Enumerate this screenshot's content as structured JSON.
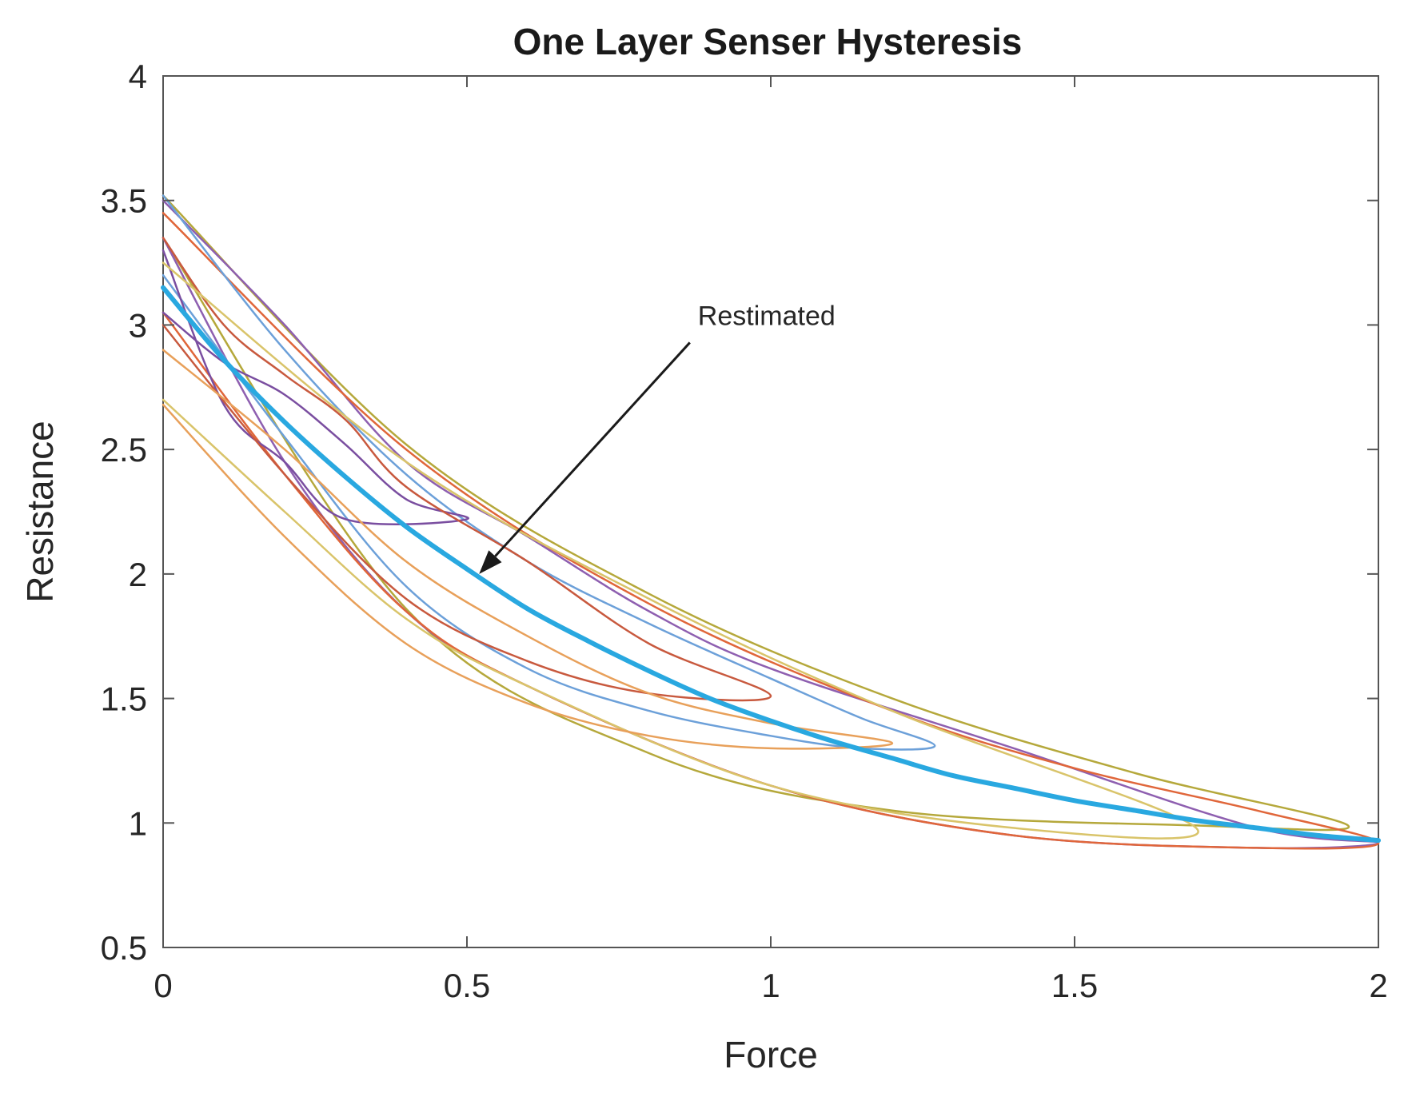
{
  "chart_data": {
    "type": "line",
    "title": "One Layer Senser Hysteresis",
    "xlabel": "Force",
    "ylabel": "Resistance",
    "xlim": [
      0,
      2
    ],
    "ylim": [
      0.5,
      4
    ],
    "xticks": [
      "0",
      "0.5",
      "1",
      "1.5",
      "2"
    ],
    "yticks": [
      "0.5",
      "1",
      "1.5",
      "2",
      "2.5",
      "3",
      "3.5",
      "4"
    ],
    "grid": false,
    "annotation": {
      "text": "Restimated",
      "point": [
        0.52,
        2.0
      ],
      "text_at": [
        0.88,
        3.0
      ]
    },
    "estimated_series": {
      "color": "#29a8e0",
      "x": [
        0,
        0.1,
        0.2,
        0.3,
        0.4,
        0.5,
        0.6,
        0.7,
        0.8,
        0.9,
        1.0,
        1.1,
        1.2,
        1.3,
        1.4,
        1.5,
        1.6,
        1.7,
        1.8,
        1.9,
        2.0
      ],
      "y": [
        3.15,
        2.86,
        2.61,
        2.39,
        2.19,
        2.02,
        1.86,
        1.73,
        1.61,
        1.5,
        1.41,
        1.33,
        1.26,
        1.19,
        1.14,
        1.09,
        1.05,
        1.01,
        0.98,
        0.95,
        0.93
      ]
    },
    "series": [
      {
        "color": "#b5a83b",
        "x": [
          0,
          0.4,
          0.8,
          1.2,
          1.6,
          1.95,
          1.7,
          1.2,
          0.8,
          0.4,
          0
        ],
        "y": [
          3.52,
          2.52,
          1.92,
          1.5,
          1.2,
          0.99,
          0.99,
          1.05,
          1.28,
          1.86,
          3.35
        ]
      },
      {
        "color": "#8e5fb0",
        "x": [
          0,
          0.2,
          0.4,
          0.6,
          0.8,
          1.0,
          1.4,
          1.8,
          2.0,
          1.8,
          1.4,
          1.0,
          0.6,
          0.4,
          0.2,
          0
        ],
        "y": [
          3.5,
          3.0,
          2.45,
          2.15,
          1.85,
          1.62,
          1.3,
          0.98,
          0.92,
          0.9,
          0.95,
          1.15,
          1.55,
          1.85,
          2.45,
          3.35
        ]
      },
      {
        "color": "#e0663a",
        "x": [
          0,
          0.4,
          0.8,
          1.2,
          1.5,
          1.8,
          2.0,
          1.8,
          1.4,
          1.0,
          0.6,
          0.4,
          0.2,
          0
        ],
        "y": [
          3.45,
          2.5,
          1.88,
          1.45,
          1.22,
          1.05,
          0.92,
          0.9,
          0.95,
          1.15,
          1.55,
          1.85,
          2.4,
          3.05
        ]
      },
      {
        "color": "#6ca0d9",
        "x": [
          0,
          0.2,
          0.4,
          0.6,
          0.8,
          1.0,
          1.15,
          1.27,
          1.15,
          1.0,
          0.8,
          0.6,
          0.4,
          0.2,
          0
        ],
        "y": [
          3.52,
          2.9,
          2.4,
          2.05,
          1.8,
          1.58,
          1.42,
          1.31,
          1.3,
          1.35,
          1.45,
          1.62,
          1.95,
          2.55,
          3.2
        ]
      },
      {
        "color": "#7a4ea0",
        "x": [
          0,
          0.1,
          0.2,
          0.3,
          0.4,
          0.5,
          0.3,
          0.2,
          0.1,
          0
        ],
        "y": [
          3.05,
          2.85,
          2.72,
          2.52,
          2.3,
          2.22,
          2.22,
          2.45,
          2.68,
          3.3
        ]
      },
      {
        "color": "#c8593e",
        "x": [
          0,
          0.1,
          0.2,
          0.3,
          0.4,
          0.6,
          0.8,
          1.0,
          0.8,
          0.6,
          0.4,
          0.2,
          0
        ],
        "y": [
          3.35,
          3.0,
          2.8,
          2.62,
          2.35,
          2.05,
          1.72,
          1.51,
          1.52,
          1.65,
          1.9,
          2.4,
          3.0
        ]
      },
      {
        "color": "#d9c46a",
        "x": [
          0,
          0.4,
          0.8,
          1.2,
          1.7,
          1.4,
          1.0,
          0.6,
          0.4,
          0.2,
          0
        ],
        "y": [
          3.25,
          2.45,
          1.9,
          1.45,
          0.98,
          0.98,
          1.15,
          1.55,
          1.82,
          2.25,
          2.7
        ]
      },
      {
        "color": "#e8a05a",
        "x": [
          0,
          0.2,
          0.4,
          0.6,
          0.8,
          1.0,
          1.2,
          1.0,
          0.8,
          0.6,
          0.4,
          0.2,
          0
        ],
        "y": [
          2.9,
          2.5,
          2.05,
          1.75,
          1.52,
          1.4,
          1.32,
          1.3,
          1.35,
          1.48,
          1.72,
          2.15,
          2.68
        ]
      }
    ]
  }
}
